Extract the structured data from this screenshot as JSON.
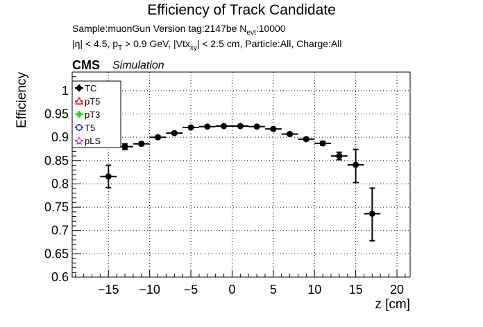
{
  "header": {
    "title": "Efficiency of Track Candidate",
    "info_line1_a": "Sample:muonGun   Version tag:2147be  N",
    "info_line1_sub": "evt",
    "info_line1_b": ":10000",
    "info_line2_a": "|η| < 4.5, p",
    "info_line2_sub1": "T",
    "info_line2_b": " > 0.9 GeV, |Vtx",
    "info_line2_sub2": "xy",
    "info_line2_c": "| < 2.5 cm, Particle:All, Charge:All",
    "cms": "CMS",
    "simulation": "Simulation"
  },
  "chart_data": {
    "type": "scatter",
    "title": "Efficiency of Track Candidate",
    "xlabel": "z [cm]",
    "ylabel": "Efficiency",
    "xlim": [
      -19.4,
      21.6
    ],
    "ylim": [
      0.6,
      1.04
    ],
    "x_ticks": [
      -15,
      -10,
      -5,
      0,
      5,
      10,
      15,
      20
    ],
    "x_tick_labels": [
      "−15",
      "−10",
      "−5",
      "0",
      "5",
      "10",
      "15",
      "20"
    ],
    "y_ticks": [
      0.6,
      0.65,
      0.7,
      0.75,
      0.8,
      0.85,
      0.9,
      0.95,
      1.0
    ],
    "y_tick_labels": [
      "0.6",
      "0.65",
      "0.7",
      "0.75",
      "0.8",
      "0.85",
      "0.9",
      "0.95",
      "1"
    ],
    "grid": true,
    "legend_position": "top-left",
    "series": [
      {
        "name": "TC",
        "color": "#000000",
        "marker": "filled-circle",
        "x": [
          -15,
          -13,
          -11,
          -9,
          -7,
          -5,
          -3,
          -1,
          1,
          3,
          5,
          7,
          9,
          11,
          13,
          15,
          17
        ],
        "y": [
          0.816,
          0.88,
          0.886,
          0.9,
          0.909,
          0.921,
          0.923,
          0.924,
          0.924,
          0.923,
          0.918,
          0.907,
          0.896,
          0.887,
          0.86,
          0.841,
          0.736
        ],
        "x_err": 1,
        "y_err_low": [
          0.024,
          0.006,
          0.004,
          0.003,
          0.003,
          0.002,
          0.002,
          0.002,
          0.002,
          0.002,
          0.003,
          0.003,
          0.003,
          0.004,
          0.008,
          0.038,
          0.058
        ],
        "y_err_high": [
          0.024,
          0.006,
          0.004,
          0.003,
          0.003,
          0.002,
          0.002,
          0.002,
          0.002,
          0.002,
          0.003,
          0.003,
          0.003,
          0.004,
          0.008,
          0.033,
          0.055
        ]
      },
      {
        "name": "pT5",
        "color": "#e8201a",
        "marker": "open-triangle",
        "x": [],
        "y": []
      },
      {
        "name": "pT3",
        "color": "#22e01a",
        "marker": "filled-diamond",
        "x": [],
        "y": []
      },
      {
        "name": "T5",
        "color": "#1f2be0",
        "marker": "open-circle",
        "x": [],
        "y": []
      },
      {
        "name": "pLS",
        "color": "#e030e0",
        "marker": "open-star",
        "x": [],
        "y": []
      }
    ]
  }
}
